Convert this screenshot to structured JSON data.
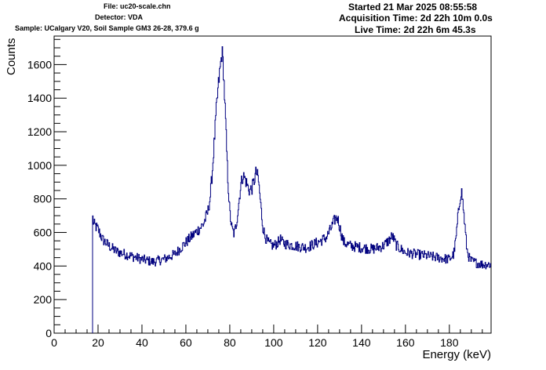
{
  "header": {
    "file": "File: uc20-scale.chn",
    "detector": "Detector: VDA",
    "sample": "Sample: UCalgary V20, Soil Sample GM3 26-28, 379.6 g",
    "started": "Started 21 Mar 2025 08:55:58",
    "acquisition": "Acquisition Time: 2d 22h 10m 0.0s",
    "live": "Live Time: 2d 22h 6m 45.3s"
  },
  "chart_data": {
    "type": "line",
    "xlabel": "Energy (keV)",
    "ylabel": "Counts",
    "xlim": [
      0,
      199
    ],
    "ylim": [
      0,
      1770
    ],
    "x_ticks": [
      0,
      20,
      40,
      60,
      80,
      100,
      120,
      140,
      160,
      180
    ],
    "y_ticks": [
      0,
      200,
      400,
      600,
      800,
      1000,
      1200,
      1400,
      1600
    ],
    "line_color": "#00007f",
    "x": [
      17.5,
      18,
      20,
      22,
      25,
      28,
      30,
      35,
      40,
      45,
      50,
      55,
      60,
      63,
      66,
      68,
      70,
      71,
      72,
      73,
      74,
      75,
      76,
      76.5,
      77,
      78,
      79,
      80,
      81,
      82,
      83,
      84,
      85,
      86,
      87,
      88,
      89,
      90,
      91,
      92,
      93,
      94,
      95,
      96,
      97,
      98,
      100,
      102,
      103,
      104,
      106,
      110,
      115,
      120,
      124,
      126,
      128,
      129,
      130,
      131,
      132,
      135,
      140,
      145,
      150,
      153,
      154,
      156,
      160,
      165,
      170,
      175,
      180,
      182,
      183,
      184,
      185,
      185.5,
      186,
      187,
      188,
      189,
      190,
      192,
      195,
      199
    ],
    "y": [
      700,
      650,
      620,
      560,
      520,
      490,
      480,
      460,
      440,
      425,
      440,
      470,
      540,
      580,
      620,
      650,
      720,
      800,
      950,
      1150,
      1350,
      1500,
      1620,
      1680,
      1600,
      1300,
      950,
      720,
      620,
      590,
      650,
      760,
      880,
      940,
      920,
      880,
      850,
      860,
      900,
      960,
      920,
      780,
      640,
      580,
      550,
      530,
      520,
      540,
      560,
      540,
      530,
      520,
      510,
      540,
      570,
      620,
      680,
      690,
      640,
      580,
      540,
      520,
      510,
      500,
      520,
      560,
      580,
      520,
      480,
      470,
      460,
      450,
      440,
      470,
      560,
      700,
      820,
      850,
      800,
      650,
      500,
      450,
      430,
      420,
      410,
      410
    ]
  }
}
